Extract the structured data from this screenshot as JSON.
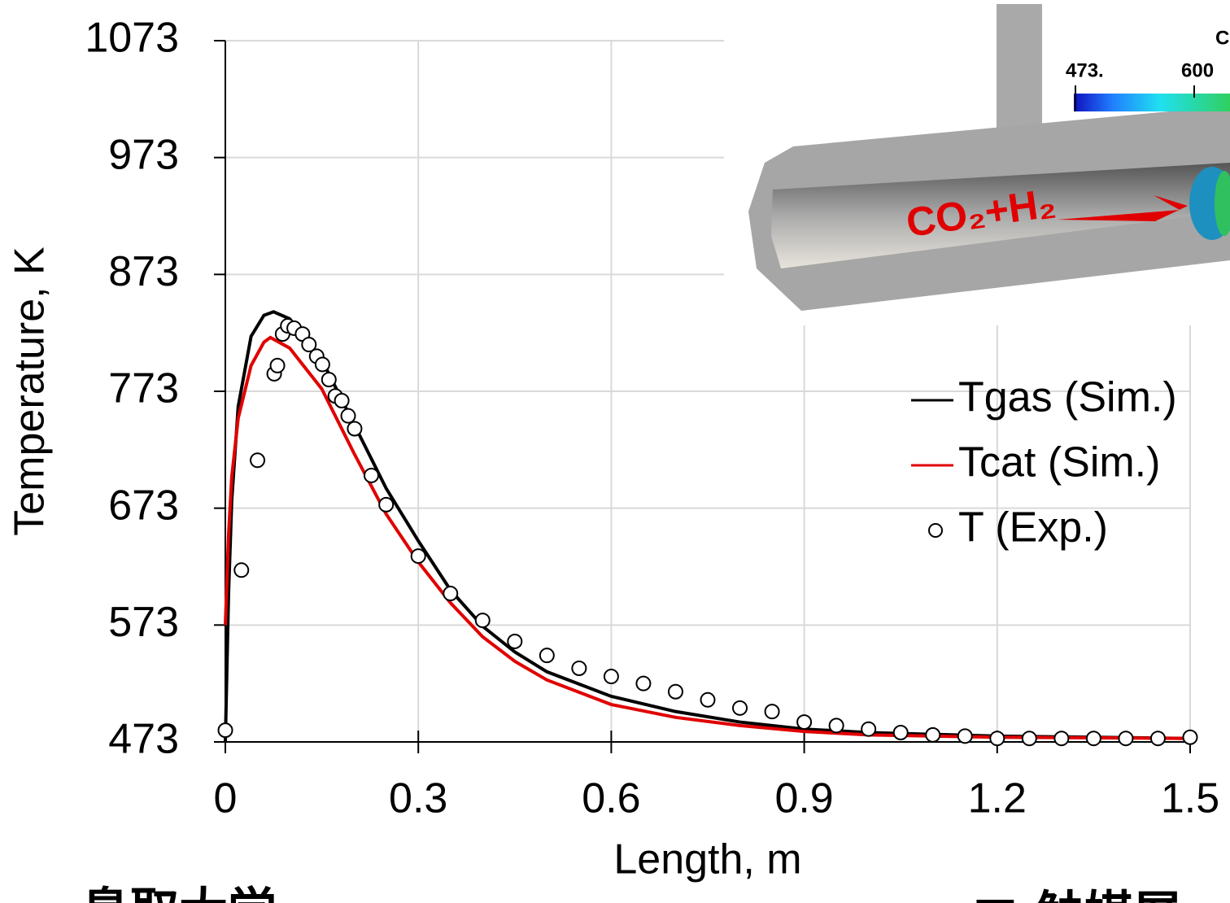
{
  "chart_data": {
    "type": "line",
    "xlabel": "Length, m",
    "ylabel": "Temperature, K",
    "xlim": [
      0,
      1.5
    ],
    "xticks": [
      0,
      0.3,
      0.6,
      0.9,
      1.2,
      1.5
    ],
    "ylim": [
      473,
      1073
    ],
    "yticks": [
      473,
      573,
      673,
      773,
      873,
      973,
      1073
    ],
    "grid": true,
    "legend": "right",
    "series": [
      {
        "name": "Tgas (Sim.)",
        "color": "#000000",
        "style": "line",
        "x": [
          0,
          0.005,
          0.01,
          0.02,
          0.04,
          0.06,
          0.075,
          0.1,
          0.15,
          0.2,
          0.25,
          0.3,
          0.35,
          0.4,
          0.45,
          0.5,
          0.6,
          0.7,
          0.8,
          0.9,
          1.0,
          1.2,
          1.5
        ],
        "values": [
          473,
          600,
          680,
          760,
          820,
          838,
          841,
          835,
          800,
          745,
          690,
          645,
          603,
          572,
          550,
          533,
          512,
          499,
          490,
          484,
          481,
          478,
          476
        ]
      },
      {
        "name": "Tcat (Sim.)",
        "color": "#e00000",
        "style": "line",
        "x": [
          0,
          0.005,
          0.01,
          0.02,
          0.04,
          0.06,
          0.07,
          0.1,
          0.15,
          0.2,
          0.25,
          0.3,
          0.35,
          0.4,
          0.45,
          0.5,
          0.6,
          0.7,
          0.8,
          0.9,
          1.0,
          1.2,
          1.5
        ],
        "values": [
          573,
          650,
          700,
          750,
          795,
          815,
          819,
          810,
          775,
          720,
          668,
          627,
          592,
          563,
          542,
          526,
          505,
          494,
          487,
          482,
          479,
          477,
          476
        ]
      },
      {
        "name": "T (Exp.)",
        "color": "#000000",
        "style": "marker",
        "x": [
          0,
          0.025,
          0.05,
          0.076,
          0.081,
          0.089,
          0.097,
          0.107,
          0.12,
          0.13,
          0.142,
          0.151,
          0.161,
          0.171,
          0.181,
          0.191,
          0.201,
          0.227,
          0.25,
          0.3,
          0.35,
          0.4,
          0.45,
          0.5,
          0.55,
          0.6,
          0.65,
          0.7,
          0.75,
          0.8,
          0.85,
          0.9,
          0.95,
          1.0,
          1.05,
          1.1,
          1.15,
          1.2,
          1.25,
          1.3,
          1.35,
          1.4,
          1.45,
          1.5
        ],
        "values": [
          483,
          620,
          714,
          788,
          795,
          822,
          829,
          827,
          822,
          813,
          803,
          796,
          783,
          769,
          765,
          752,
          741,
          701,
          676,
          632,
          600,
          577,
          559,
          547,
          536,
          529,
          523,
          516,
          509,
          502,
          499,
          490,
          487,
          484,
          481,
          479,
          478,
          476,
          476,
          476,
          476,
          476,
          476,
          477
        ]
      }
    ],
    "inset": {
      "colorbar_labels": [
        "473.",
        "600",
        "C"
      ],
      "annotation": "CO₂+H₂"
    },
    "footer_texts": [
      "鳥取大学",
      "■ 触媒層"
    ]
  }
}
